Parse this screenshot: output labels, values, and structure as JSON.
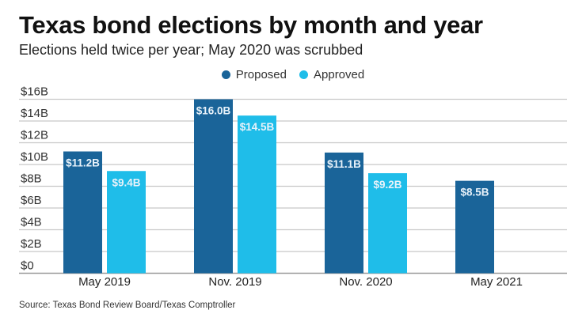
{
  "chart_data": {
    "type": "bar",
    "title": "Texas bond elections by month and year",
    "subtitle": "Elections held twice per year; May 2020 was scrubbed",
    "xlabel": "",
    "ylabel": "",
    "ylim": [
      0,
      16
    ],
    "yticks": [
      0,
      2,
      4,
      6,
      8,
      10,
      12,
      14,
      16
    ],
    "ytick_labels": [
      "$0",
      "$2B",
      "$4B",
      "$6B",
      "$8B",
      "$10B",
      "$12B",
      "$14B",
      "$16B"
    ],
    "grid": true,
    "legend_position": "top-center",
    "categories": [
      "May 2019",
      "Nov. 2019",
      "Nov. 2020",
      "May 2021"
    ],
    "series": [
      {
        "name": "Proposed",
        "color": "#1a6499",
        "values": [
          11.2,
          16.0,
          11.1,
          8.5
        ],
        "labels": [
          "$11.2B",
          "$16.0B",
          "$11.1B",
          "$8.5B"
        ]
      },
      {
        "name": "Approved",
        "color": "#1fbde9",
        "values": [
          9.4,
          14.5,
          9.2,
          null
        ],
        "labels": [
          "$9.4B",
          "$14.5B",
          "$9.2B",
          null
        ]
      }
    ],
    "source": "Source: Texas Bond Review Board/Texas Comptroller"
  }
}
